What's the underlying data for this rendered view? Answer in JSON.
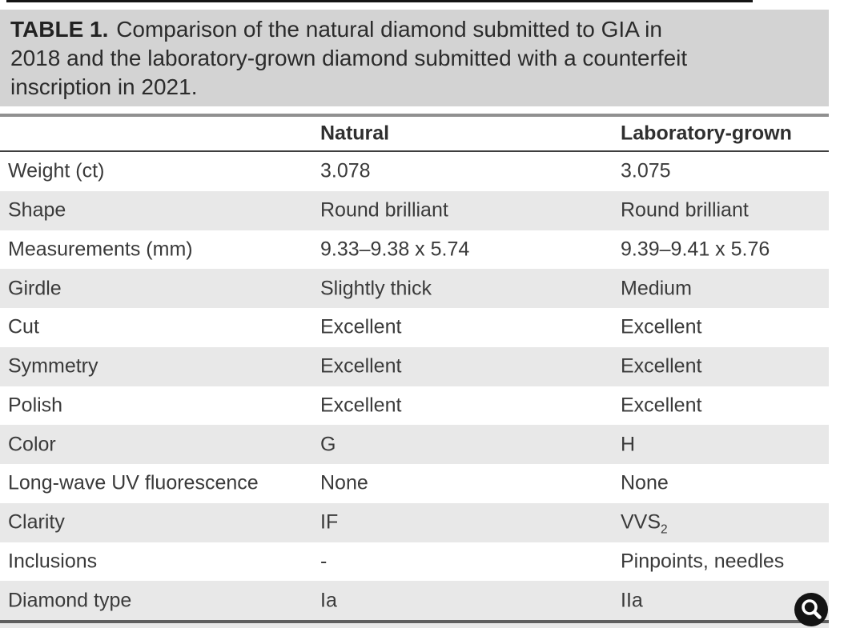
{
  "title": {
    "label": "TABLE 1.",
    "line1_rest": "Comparison of the natural diamond submitted to GIA in",
    "line2": "2018 and the laboratory-grown diamond submitted with a counterfeit",
    "line3": "inscription in 2021."
  },
  "table": {
    "columns": [
      "",
      "Natural",
      "Laboratory-grown"
    ],
    "rows": [
      {
        "label": "Weight (ct)",
        "natural": "3.078",
        "lab": "3.075"
      },
      {
        "label": "Shape",
        "natural": "Round brilliant",
        "lab": "Round brilliant"
      },
      {
        "label": "Measurements (mm)",
        "natural": "9.33–9.38 x 5.74",
        "lab": "9.39–9.41 x 5.76"
      },
      {
        "label": "Girdle",
        "natural": "Slightly thick",
        "lab": "Medium"
      },
      {
        "label": "Cut",
        "natural": "Excellent",
        "lab": "Excellent"
      },
      {
        "label": "Symmetry",
        "natural": "Excellent",
        "lab": "Excellent"
      },
      {
        "label": "Polish",
        "natural": "Excellent",
        "lab": "Excellent"
      },
      {
        "label": "Color",
        "natural": "G",
        "lab": "H"
      },
      {
        "label": "Long-wave UV fluorescence",
        "natural": "None",
        "lab": "None"
      },
      {
        "label": "Clarity",
        "natural": "IF",
        "lab": "VVS",
        "lab_sub": "2"
      },
      {
        "label": "Inclusions",
        "natural": "-",
        "lab": "Pinpoints, needles"
      },
      {
        "label": "Diamond type",
        "natural": "Ia",
        "lab": "IIa"
      }
    ]
  },
  "overlay": {
    "zoom_button": "magnifier"
  },
  "colors": {
    "title-box": "#d3d3d3",
    "stripe": "#e8e8e8",
    "text": "#3a3a3a",
    "dark": "#141414"
  }
}
